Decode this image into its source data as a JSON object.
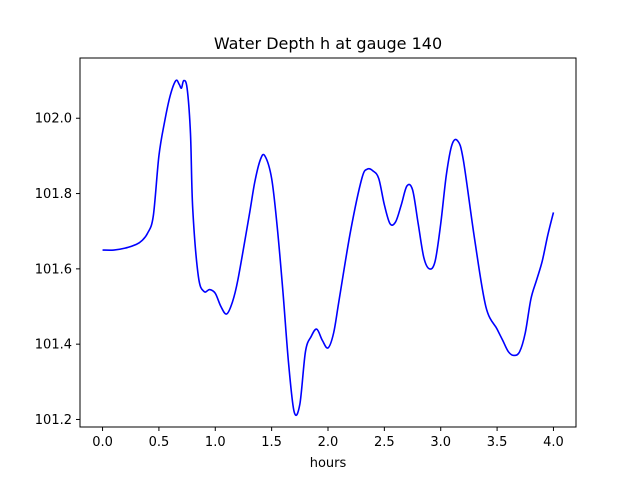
{
  "chart_data": {
    "type": "line",
    "title": "Water Depth h at gauge 140",
    "xlabel": "hours",
    "ylabel": "",
    "xlim": [
      -0.2,
      4.2
    ],
    "ylim": [
      101.18,
      102.16
    ],
    "xticks": [
      0.0,
      0.5,
      1.0,
      1.5,
      2.0,
      2.5,
      3.0,
      3.5,
      4.0
    ],
    "xtick_labels": [
      "0.0",
      "0.5",
      "1.0",
      "1.5",
      "2.0",
      "2.5",
      "3.0",
      "3.5",
      "4.0"
    ],
    "yticks": [
      101.2,
      101.4,
      101.6,
      101.8,
      102.0
    ],
    "ytick_labels": [
      "101.2",
      "101.4",
      "101.6",
      "101.8",
      "102.0"
    ],
    "grid": false,
    "line_color": "#0000ff",
    "series": [
      {
        "x": [
          0.0,
          0.1,
          0.2,
          0.3,
          0.35,
          0.4,
          0.45,
          0.5,
          0.55,
          0.6,
          0.65,
          0.68,
          0.7,
          0.72,
          0.75,
          0.78,
          0.8,
          0.85,
          0.9,
          0.95,
          1.0,
          1.05,
          1.1,
          1.15,
          1.2,
          1.3,
          1.35,
          1.4,
          1.44,
          1.5,
          1.55,
          1.6,
          1.65,
          1.7,
          1.75,
          1.8,
          1.85,
          1.9,
          1.95,
          2.0,
          2.05,
          2.1,
          2.2,
          2.3,
          2.35,
          2.4,
          2.45,
          2.5,
          2.55,
          2.6,
          2.65,
          2.7,
          2.75,
          2.8,
          2.85,
          2.9,
          2.95,
          3.0,
          3.05,
          3.1,
          3.15,
          3.2,
          3.3,
          3.4,
          3.5,
          3.55,
          3.6,
          3.65,
          3.7,
          3.75,
          3.8,
          3.85,
          3.9,
          3.95,
          4.0
        ],
        "y": [
          101.65,
          101.65,
          101.655,
          101.665,
          101.675,
          101.695,
          101.74,
          101.9,
          101.99,
          102.06,
          102.1,
          102.09,
          102.08,
          102.1,
          102.08,
          101.96,
          101.76,
          101.58,
          101.54,
          101.545,
          101.535,
          101.5,
          101.48,
          101.51,
          101.57,
          101.74,
          101.83,
          101.89,
          101.9,
          101.84,
          101.71,
          101.54,
          101.35,
          101.22,
          101.24,
          101.38,
          101.42,
          101.44,
          101.41,
          101.39,
          101.43,
          101.52,
          101.7,
          101.84,
          101.865,
          101.86,
          101.84,
          101.77,
          101.72,
          101.725,
          101.77,
          101.82,
          101.81,
          101.72,
          101.63,
          101.6,
          101.62,
          101.72,
          101.85,
          101.93,
          101.94,
          101.89,
          101.68,
          101.5,
          101.44,
          101.41,
          101.38,
          101.37,
          101.38,
          101.43,
          101.52,
          101.57,
          101.62,
          101.69,
          101.75
        ]
      }
    ]
  }
}
